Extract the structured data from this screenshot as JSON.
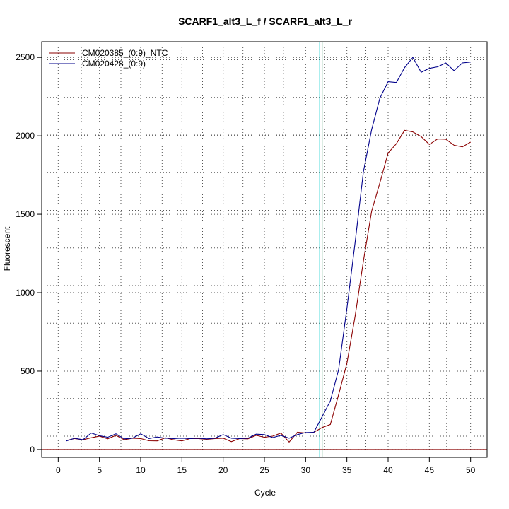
{
  "chart_data": {
    "type": "line",
    "title": "SCARF1_alt3_L_f / SCARF1_alt3_L_r",
    "xlabel": "Cycle",
    "ylabel": "Fluorescent",
    "xlim": [
      -2,
      52
    ],
    "ylim": [
      -50,
      2600
    ],
    "xticks": [
      0,
      5,
      10,
      15,
      20,
      25,
      30,
      35,
      40,
      45,
      50
    ],
    "yticks": [
      0,
      500,
      1000,
      1500,
      2000,
      2500
    ],
    "grid": true,
    "legend_position": "top-left",
    "x": [
      1,
      2,
      3,
      4,
      5,
      6,
      7,
      8,
      9,
      10,
      11,
      12,
      13,
      14,
      15,
      16,
      17,
      18,
      19,
      20,
      21,
      22,
      23,
      24,
      25,
      26,
      27,
      28,
      29,
      30,
      31,
      32,
      33,
      34,
      35,
      36,
      37,
      38,
      39,
      40,
      41,
      42,
      43,
      44,
      45,
      46,
      47,
      48,
      49,
      50
    ],
    "series": [
      {
        "name": "CM020385_(0:9)_NTC",
        "color": "#8b0000",
        "values": [
          58,
          70,
          62,
          75,
          85,
          68,
          90,
          62,
          72,
          70,
          56,
          55,
          75,
          62,
          55,
          70,
          70,
          65,
          70,
          72,
          50,
          70,
          68,
          90,
          78,
          85,
          105,
          48,
          110,
          105,
          110,
          140,
          160,
          350,
          550,
          850,
          1200,
          1520,
          1700,
          1890,
          1950,
          2035,
          2025,
          1995,
          1945,
          1980,
          1978,
          1940,
          1930,
          1960
        ]
      },
      {
        "name": "CM020428_(0:9)",
        "color": "#00008b",
        "values": [
          55,
          72,
          62,
          105,
          88,
          78,
          100,
          68,
          72,
          100,
          70,
          80,
          72,
          70,
          72,
          70,
          72,
          68,
          72,
          95,
          72,
          70,
          72,
          98,
          95,
          76,
          90,
          72,
          95,
          108,
          110,
          210,
          310,
          510,
          900,
          1320,
          1770,
          2040,
          2240,
          2345,
          2340,
          2435,
          2500,
          2405,
          2430,
          2440,
          2465,
          2415,
          2465,
          2470
        ]
      }
    ],
    "threshold_y": 0,
    "vertical_lines": [
      {
        "x": 31.7,
        "color": "#00cccc"
      },
      {
        "x": 32.0,
        "color": "#2e8b57"
      }
    ],
    "minor_gridlines_x": [
      2.8,
      7.6,
      12.6,
      17.5,
      22.4,
      27.3,
      32.3,
      37.3,
      42.2,
      47.1
    ],
    "minor_gridlines_y": [
      85,
      325,
      565,
      805,
      1045,
      1285,
      1525,
      1765,
      2005,
      2245,
      2485
    ]
  }
}
